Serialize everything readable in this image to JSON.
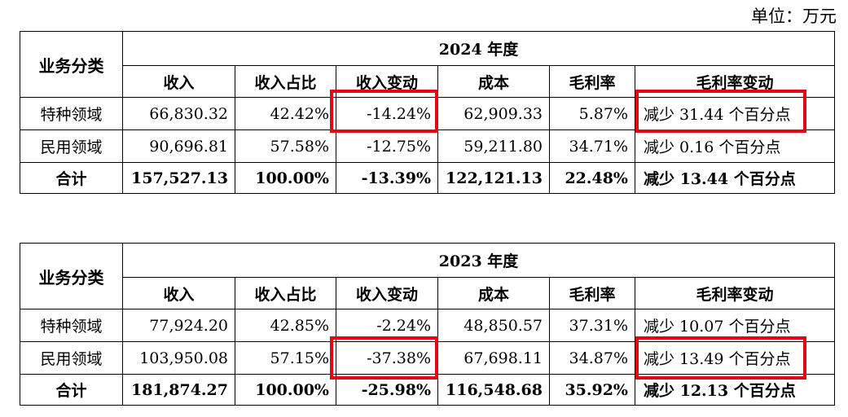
{
  "unit_label": "单位：万元",
  "highlight_color": "#e30613",
  "columns": [
    "收入",
    "收入占比",
    "收入变动",
    "成本",
    "毛利率",
    "毛利率变动"
  ],
  "category_header": "业务分类",
  "tables": [
    {
      "year_label": "2024 年度",
      "rows": [
        {
          "category": "特种领域",
          "revenue": "66,830.32",
          "share": "42.42%",
          "revenue_change": "-14.24%",
          "cost": "62,909.33",
          "gross_margin": "5.87%",
          "margin_change": "减少 31.44 个百分点"
        },
        {
          "category": "民用领域",
          "revenue": "90,696.81",
          "share": "57.58%",
          "revenue_change": "-12.75%",
          "cost": "59,211.80",
          "gross_margin": "34.71%",
          "margin_change": "减少 0.16 个百分点"
        }
      ],
      "total": {
        "category": "合计",
        "revenue": "157,527.13",
        "share": "100.00%",
        "revenue_change": "-13.39%",
        "cost": "122,121.13",
        "gross_margin": "22.48%",
        "margin_change": "减少 13.44 个百分点"
      }
    },
    {
      "year_label": "2023 年度",
      "rows": [
        {
          "category": "特种领域",
          "revenue": "77,924.20",
          "share": "42.85%",
          "revenue_change": "-2.24%",
          "cost": "48,850.57",
          "gross_margin": "37.31%",
          "margin_change": "减少 10.07 个百分点"
        },
        {
          "category": "民用领域",
          "revenue": "103,950.08",
          "share": "57.15%",
          "revenue_change": "-37.38%",
          "cost": "67,698.11",
          "gross_margin": "34.87%",
          "margin_change": "减少 13.49 个百分点"
        }
      ],
      "total": {
        "category": "合计",
        "revenue": "181,874.27",
        "share": "100.00%",
        "revenue_change": "-25.98%",
        "cost": "116,548.68",
        "gross_margin": "35.92%",
        "margin_change": "减少 12.13 个百分点"
      }
    }
  ]
}
